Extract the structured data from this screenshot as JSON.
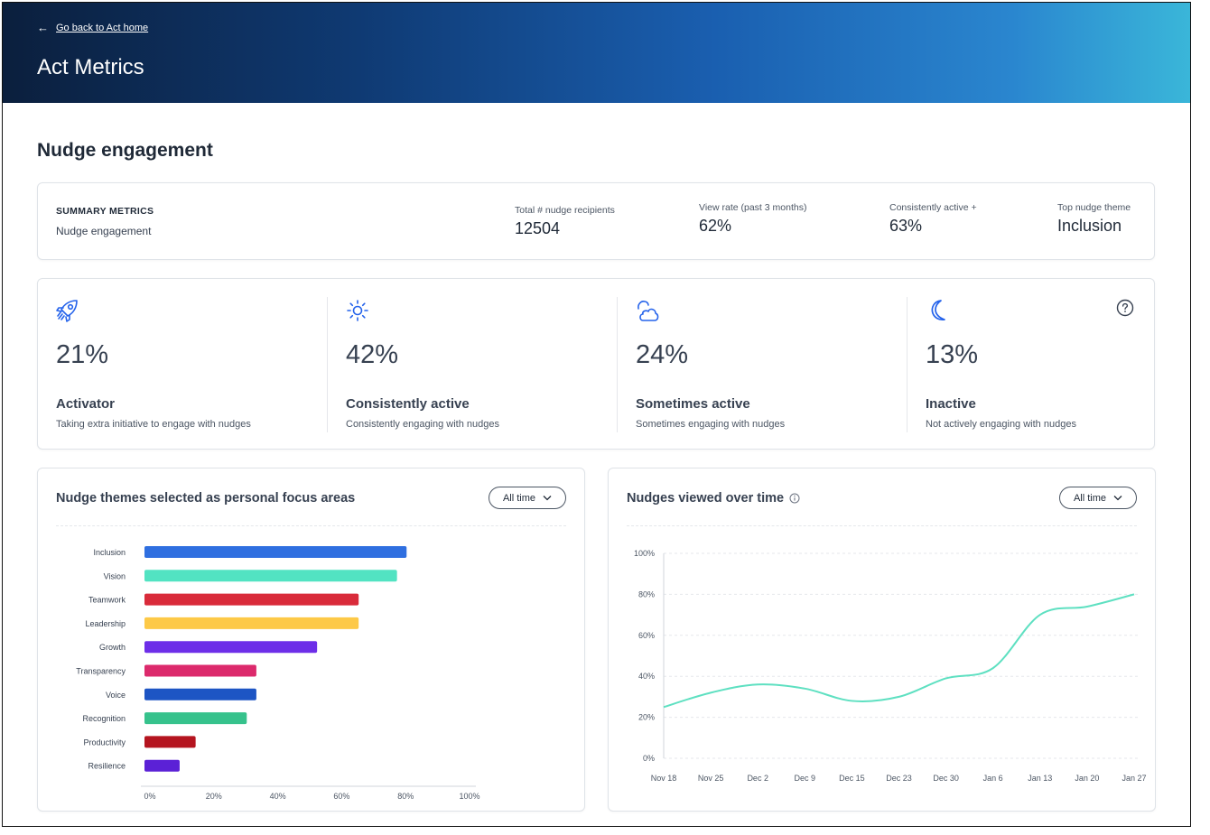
{
  "header": {
    "back_label": "Go back to Act home",
    "title": "Act Metrics"
  },
  "section_title": "Nudge engagement",
  "summary": {
    "label": "SUMMARY METRICS",
    "sub": "Nudge engagement",
    "metrics": [
      {
        "key": "Total # nudge recipients",
        "value": "12504"
      },
      {
        "key": "View rate (past 3 months)",
        "value": "62%"
      },
      {
        "key": "Consistently active +",
        "value": "63%"
      },
      {
        "key": "Top nudge theme",
        "value": "Inclusion"
      }
    ]
  },
  "segments": [
    {
      "icon": "rocket-icon",
      "pct": "21%",
      "name": "Activator",
      "desc": "Taking extra initiative to engage with nudges"
    },
    {
      "icon": "sun-icon",
      "pct": "42%",
      "name": "Consistently active",
      "desc": "Consistently engaging with nudges"
    },
    {
      "icon": "cloud-sun-icon",
      "pct": "24%",
      "name": "Sometimes active",
      "desc": "Sometimes engaging with nudges"
    },
    {
      "icon": "moon-icon",
      "pct": "13%",
      "name": "Inactive",
      "desc": "Not actively engaging with nudges"
    }
  ],
  "colors": {
    "accent": "#2563eb",
    "line": "#5ee0c1"
  },
  "themes_chart": {
    "title": "Nudge themes selected as personal focus areas",
    "dropdown": "All time"
  },
  "views_chart": {
    "title": "Nudges viewed over time",
    "dropdown": "All time"
  },
  "chart_data": [
    {
      "type": "bar",
      "orientation": "horizontal",
      "title": "Nudge themes selected as personal focus areas",
      "categories": [
        "Inclusion",
        "Vision",
        "Teamwork",
        "Leadership",
        "Growth",
        "Transparency",
        "Voice",
        "Recognition",
        "Productivity",
        "Resilience"
      ],
      "values": [
        82,
        79,
        67,
        67,
        54,
        35,
        35,
        32,
        16,
        11
      ],
      "colors": [
        "#2f6fe0",
        "#52e3c2",
        "#d92b3a",
        "#fdc947",
        "#6d2ee8",
        "#dc2a6c",
        "#1d55c4",
        "#36c28c",
        "#b5141f",
        "#5b21d6"
      ],
      "xlim": [
        0,
        100
      ],
      "xticks": [
        "0%",
        "20%",
        "40%",
        "60%",
        "80%",
        "100%"
      ]
    },
    {
      "type": "line",
      "title": "Nudges viewed over time",
      "x": [
        "Nov 18",
        "Nov 25",
        "Dec 2",
        "Dec 9",
        "Dec 15",
        "Dec 23",
        "Dec 30",
        "Jan 6",
        "Jan 13",
        "Jan 20",
        "Jan 27"
      ],
      "values": [
        25,
        32,
        36,
        34,
        28,
        30,
        39,
        44,
        70,
        74,
        80
      ],
      "ylim": [
        0,
        100
      ],
      "yticks": [
        "0%",
        "20%",
        "40%",
        "60%",
        "80%",
        "100%"
      ]
    }
  ]
}
